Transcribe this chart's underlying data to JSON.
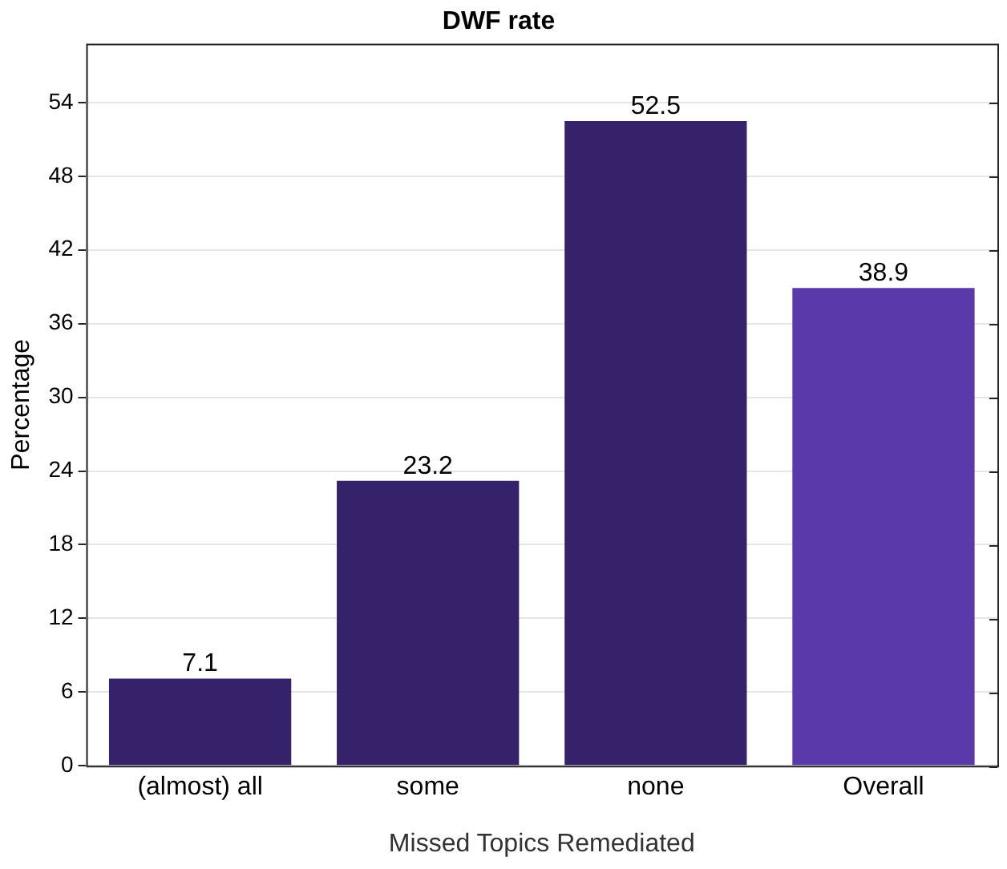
{
  "chart_data": {
    "type": "bar",
    "title": "DWF rate",
    "xlabel": "Missed Topics Remediated",
    "ylabel": "Percentage",
    "categories": [
      "(almost) all",
      "some",
      "none",
      "Overall"
    ],
    "values": [
      7.1,
      23.2,
      52.5,
      38.9
    ],
    "colors": [
      "#36226a",
      "#36226a",
      "#36226a",
      "#5a3aab"
    ],
    "ylim": [
      0,
      58.8
    ],
    "yticks": [
      0,
      6,
      12,
      18,
      24,
      30,
      36,
      42,
      48,
      54
    ],
    "grid": "y",
    "data_labels": true
  }
}
